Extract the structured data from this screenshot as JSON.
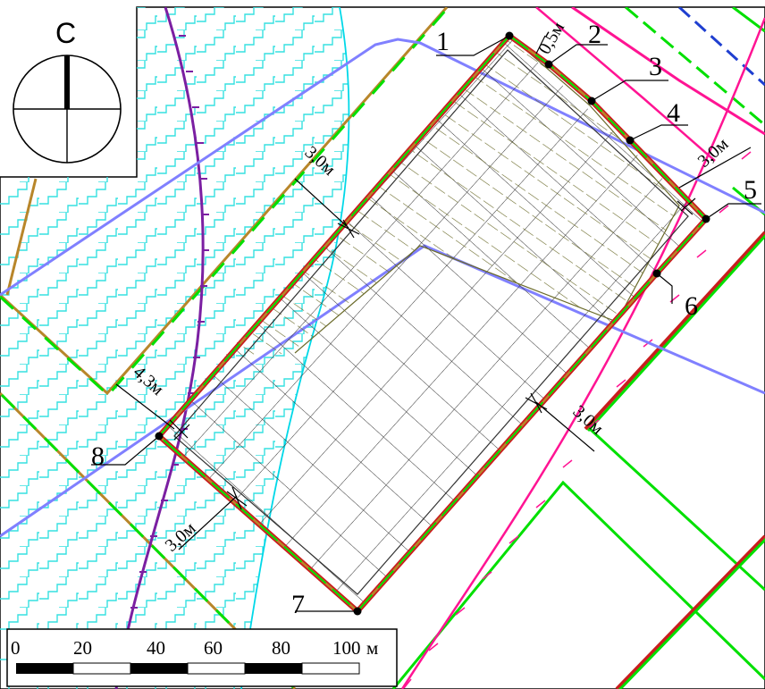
{
  "north": {
    "label": "С"
  },
  "points": [
    {
      "id": "1",
      "label": "1"
    },
    {
      "id": "2",
      "label": "2"
    },
    {
      "id": "3",
      "label": "3"
    },
    {
      "id": "4",
      "label": "4"
    },
    {
      "id": "5",
      "label": "5"
    },
    {
      "id": "6",
      "label": "6"
    },
    {
      "id": "7",
      "label": "7"
    },
    {
      "id": "8",
      "label": "8"
    }
  ],
  "dimensions": {
    "top_right_setback": "0,5м",
    "right_setback": "3,0м",
    "left_setback": "3,0м",
    "lower_right_setback": "3,0м",
    "bottom_left_setback": "3,0м",
    "left_corner_setback": "4,3м"
  },
  "scale_bar": {
    "ticks": [
      "0",
      "20",
      "40",
      "60",
      "80",
      "100"
    ],
    "unit": "м"
  },
  "colors": {
    "water_hatch": "#35e0e0",
    "boundary_green": "#00e000",
    "boundary_olive": "#b8862a",
    "parcel_red": "#c81e1e",
    "blue_line": "#8080ff",
    "purple_line": "#7b1fa2",
    "magenta_line": "#ff1493",
    "grid": "#333333",
    "hatch_olive": "#6b6b2a"
  }
}
